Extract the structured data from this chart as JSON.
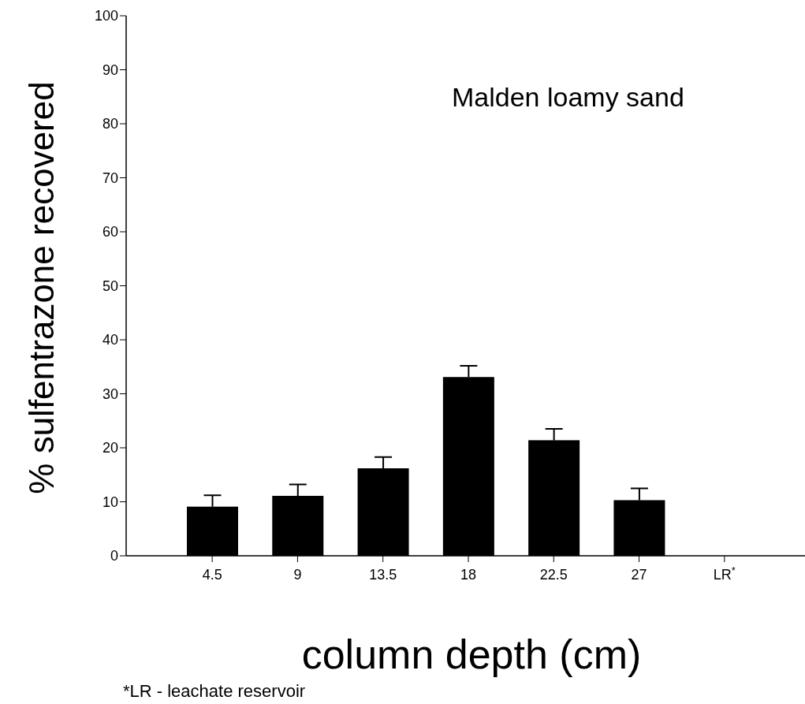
{
  "chart_data": {
    "type": "bar",
    "xlabel": "column depth (cm)",
    "ylabel": "% sulfentrazone recovered",
    "categories": [
      "4.5",
      "9",
      "13.5",
      "18",
      "22.5",
      "27",
      "LR$^{*}$"
    ],
    "values": [
      9.1,
      11.1,
      16.2,
      33.1,
      21.4,
      10.3,
      0
    ],
    "errors": [
      [
        9.1,
        11.2
      ],
      [
        11.1,
        13.2
      ],
      [
        16.2,
        18.3
      ],
      [
        33.1,
        35.2
      ],
      [
        21.4,
        23.5
      ],
      [
        10.3,
        12.5
      ],
      null
    ],
    "color": "#000000",
    "ylim": [
      0,
      100
    ],
    "yticks": [
      0,
      10,
      20,
      30,
      40,
      50,
      60,
      70,
      80,
      90,
      100
    ],
    "annotations": [
      "Malden loamy sand",
      "*LR - leachate reservoir"
    ]
  }
}
